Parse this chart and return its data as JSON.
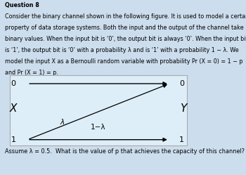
{
  "title": "Question 8",
  "line1": "Consider the binary channel shown in the following figure. It is used to model a certain",
  "line2": "property of data storage systems. Both the input and the output of the channel take",
  "line3": "binary values. When the input bit is ‘0’, the output bit is always ‘0’. When the input bit",
  "line4": "is ‘1’, the output bit is ‘0’ with a probability λ and is ‘1’ with a probability 1 − λ. We",
  "line5": "model the input X as a Bernoulli random variable with probability Pr (X = 0) = 1 − p",
  "line6": "and Pr (X = 1) = p.",
  "footer": "Assume λ = 0.5.  What is the value of p that achieves the capacity of this channel?",
  "bg_color": "#ccdded",
  "diagram_bg": "#ddeef8",
  "text_color": "#000000",
  "input_label": "X",
  "output_label": "Y",
  "lambda_label": "λ",
  "one_minus_lambda_label": "1−λ"
}
